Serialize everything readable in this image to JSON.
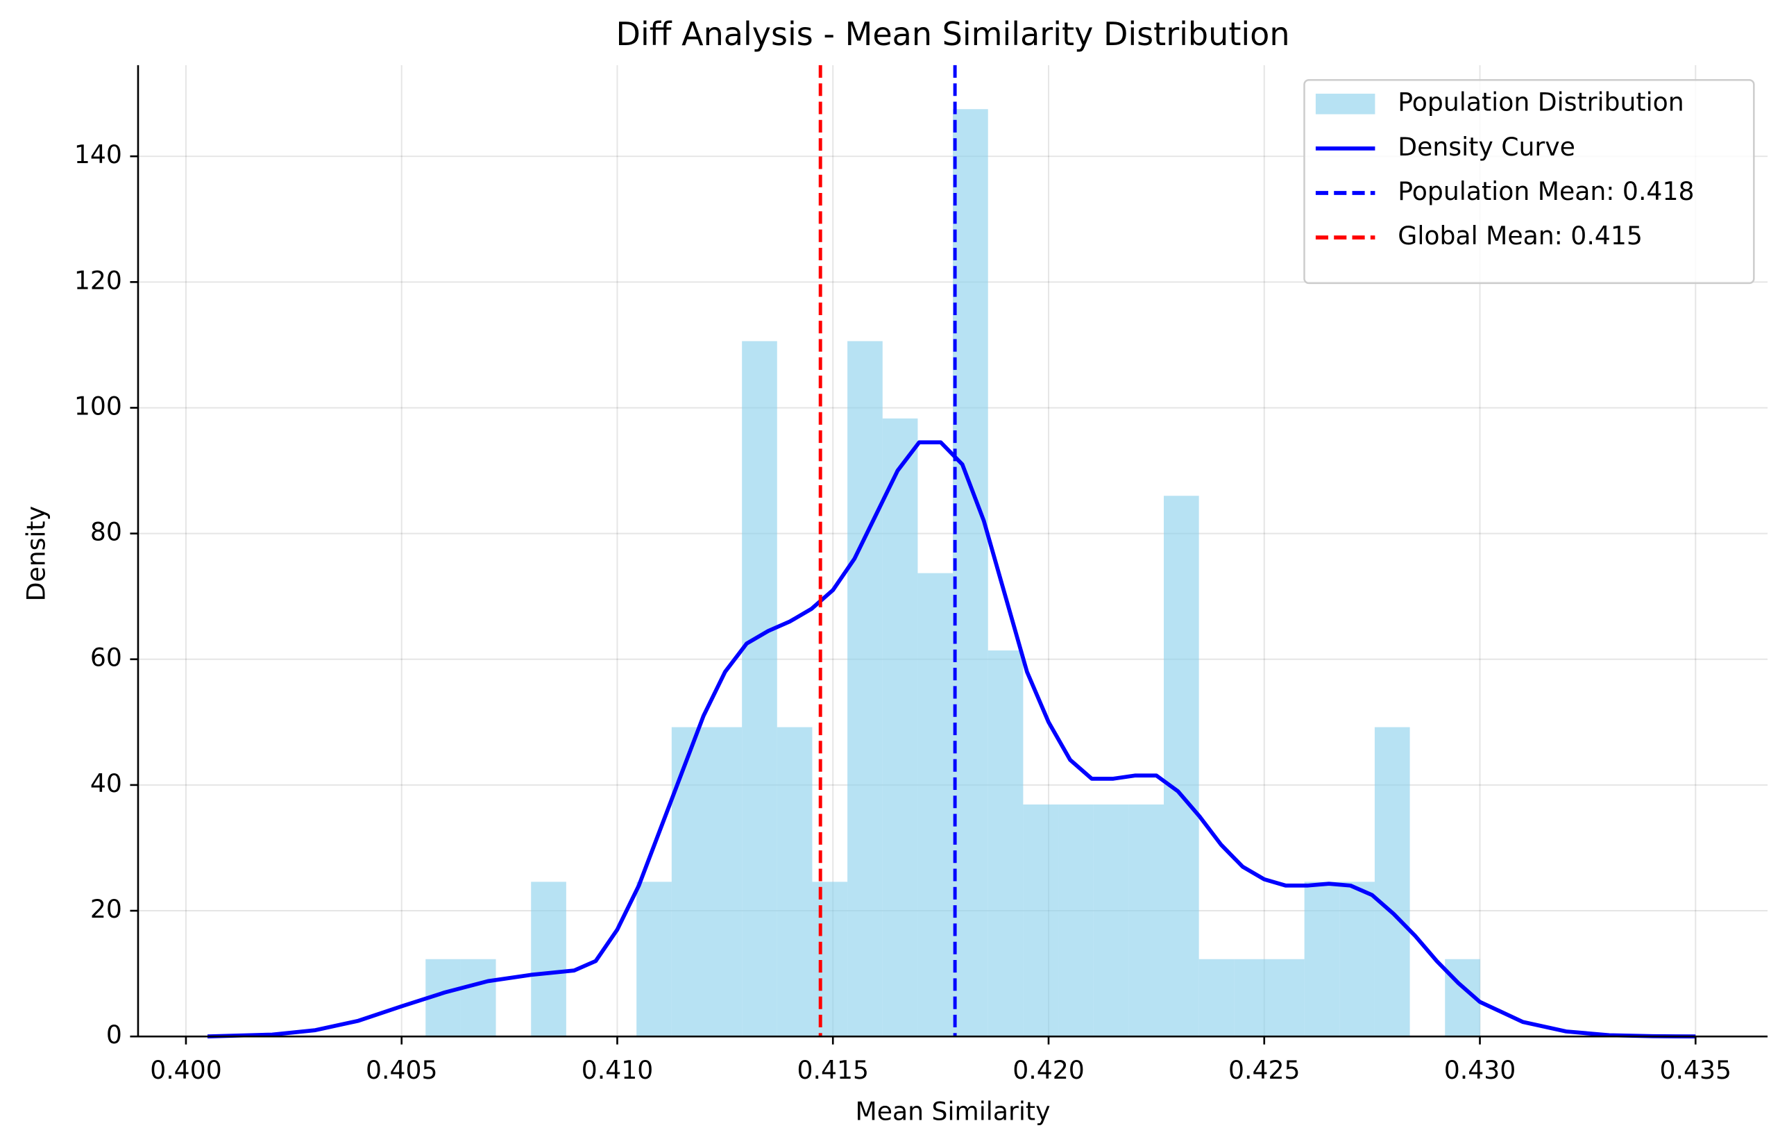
{
  "chart_data": {
    "type": "histogram",
    "title": "Diff Analysis - Mean Similarity Distribution",
    "xlabel": "Mean Similarity",
    "ylabel": "Density",
    "histogram": {
      "name": "Population Distribution",
      "color": "#87ceeb",
      "opacity": 0.6,
      "bins": [
        0.405556,
        0.406371,
        0.407186,
        0.408001,
        0.408816,
        0.409631,
        0.410446,
        0.411261,
        0.412076,
        0.412891,
        0.413706,
        0.414521,
        0.415336,
        0.416151,
        0.416966,
        0.417781,
        0.418596,
        0.419411,
        0.420226,
        0.421041,
        0.421856,
        0.422671,
        0.423486,
        0.424301,
        0.425116,
        0.425931,
        0.426746,
        0.427561,
        0.428376,
        0.429191,
        0.430006
      ],
      "values": [
        12.3,
        12.3,
        0,
        24.6,
        0,
        0,
        24.6,
        49.2,
        49.2,
        110.6,
        49.2,
        24.6,
        110.6,
        98.3,
        73.7,
        147.5,
        61.4,
        36.9,
        36.9,
        36.9,
        36.9,
        86.0,
        12.3,
        12.3,
        12.3,
        24.6,
        24.6,
        49.2,
        0,
        12.3
      ]
    },
    "series": [
      {
        "name": "Density Curve",
        "color": "#0000ff",
        "x": [
          0.4005,
          0.402,
          0.403,
          0.404,
          0.405,
          0.406,
          0.407,
          0.408,
          0.409,
          0.4095,
          0.41,
          0.4105,
          0.411,
          0.4115,
          0.412,
          0.4125,
          0.413,
          0.4135,
          0.414,
          0.4145,
          0.415,
          0.4155,
          0.416,
          0.4165,
          0.417,
          0.4175,
          0.418,
          0.4185,
          0.419,
          0.4195,
          0.42,
          0.4205,
          0.421,
          0.4215,
          0.422,
          0.4225,
          0.423,
          0.4235,
          0.424,
          0.4245,
          0.425,
          0.4255,
          0.426,
          0.4265,
          0.427,
          0.4275,
          0.428,
          0.4285,
          0.429,
          0.4295,
          0.43,
          0.431,
          0.432,
          0.433,
          0.434,
          0.435
        ],
        "values": [
          0,
          0.3,
          1,
          2.5,
          4.8,
          7,
          8.8,
          9.8,
          10.5,
          12,
          17,
          24,
          33,
          42,
          51,
          58,
          62.5,
          64.5,
          66,
          68,
          71,
          76,
          83,
          90,
          94.5,
          94.5,
          91,
          82,
          70,
          58,
          50,
          44,
          41,
          41,
          41.5,
          41.5,
          39,
          35,
          30.5,
          27,
          25,
          24,
          24,
          24.3,
          24,
          22.5,
          19.5,
          16,
          12,
          8.5,
          5.5,
          2.3,
          0.8,
          0.2,
          0.05,
          0
        ]
      }
    ],
    "vlines": [
      {
        "name": "Population Mean: 0.418",
        "color": "#0000ff",
        "x": 0.41783
      },
      {
        "name": "Global Mean: 0.415",
        "color": "#ff0000",
        "x": 0.41471
      }
    ],
    "xlim": [
      0.39889,
      0.43667
    ],
    "ylim": [
      0,
      154.5
    ],
    "xticks": [
      {
        "value": 0.4,
        "label": "0.400"
      },
      0.405,
      {
        "value": 0.41,
        "label": "0.410"
      },
      0.415,
      {
        "value": 0.42,
        "label": "0.420"
      },
      0.425,
      {
        "value": 0.43,
        "label": "0.430"
      },
      0.435
    ],
    "yticks": [
      0,
      20,
      40,
      60,
      80,
      100,
      120,
      140
    ],
    "grid": true,
    "legend": "upper right"
  }
}
